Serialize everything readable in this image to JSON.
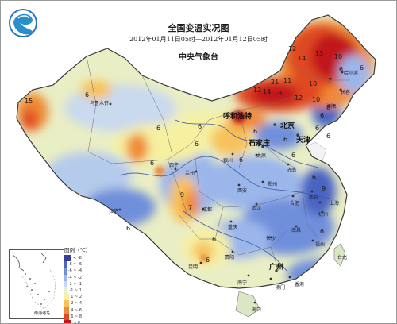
{
  "map": {
    "title": "全国变温实况图",
    "period": "2012年01月11日05时—2012年01月12日05时",
    "agency": "中央气象台",
    "logo": "cma-swirl-logo"
  },
  "legend": {
    "title": "图例（℃）",
    "levels": [
      {
        "label": "< -8",
        "color": "#3a3e9a"
      },
      {
        "label": "-8 ~ -6",
        "color": "#4a64c2"
      },
      {
        "label": "-6 ~ -4",
        "color": "#6f8fdb"
      },
      {
        "label": "-4 ~ -2",
        "color": "#9bb6eb"
      },
      {
        "label": "-2 ~ -1",
        "color": "#c4d6f2"
      },
      {
        "label": "-1 ~ 1",
        "color": "#e6efd4"
      },
      {
        "label": "1 ~ 2",
        "color": "#f6f0a0"
      },
      {
        "label": "2 ~ 4",
        "color": "#f7c25c"
      },
      {
        "label": "4 ~ 6",
        "color": "#ef8a36"
      },
      {
        "label": "6 ~ 8",
        "color": "#e04a22"
      },
      {
        "label": "> 8",
        "color": "#c1191b"
      }
    ]
  },
  "inset_label": "南海诸岛",
  "cities_major": [
    "北京",
    "天津",
    "石家庄",
    "呼和浩特",
    "广州"
  ],
  "cities_minor": [
    "乌鲁木齐",
    "银川",
    "兰州",
    "西宁",
    "太原",
    "济南",
    "郑州",
    "西安",
    "成都",
    "拉萨",
    "重庆",
    "武汉",
    "合肥",
    "南京",
    "上海",
    "杭州",
    "长沙",
    "南昌",
    "福州",
    "贵阳",
    "昆明",
    "南宁",
    "香港",
    "澳门",
    "海口",
    "台北",
    "沈阳",
    "长春",
    "哈尔滨"
  ],
  "values": [
    "15",
    "6",
    "6",
    "6",
    "6",
    "6",
    "6",
    "7",
    "9",
    "6",
    "14",
    "12",
    "13",
    "11",
    "12",
    "21",
    "10",
    "10",
    "7",
    "6",
    "8",
    "6",
    "6",
    "6",
    "6",
    "10",
    "13",
    "14",
    "12",
    "6",
    "6",
    "6",
    "6",
    "6",
    "9",
    "6",
    "6"
  ]
}
